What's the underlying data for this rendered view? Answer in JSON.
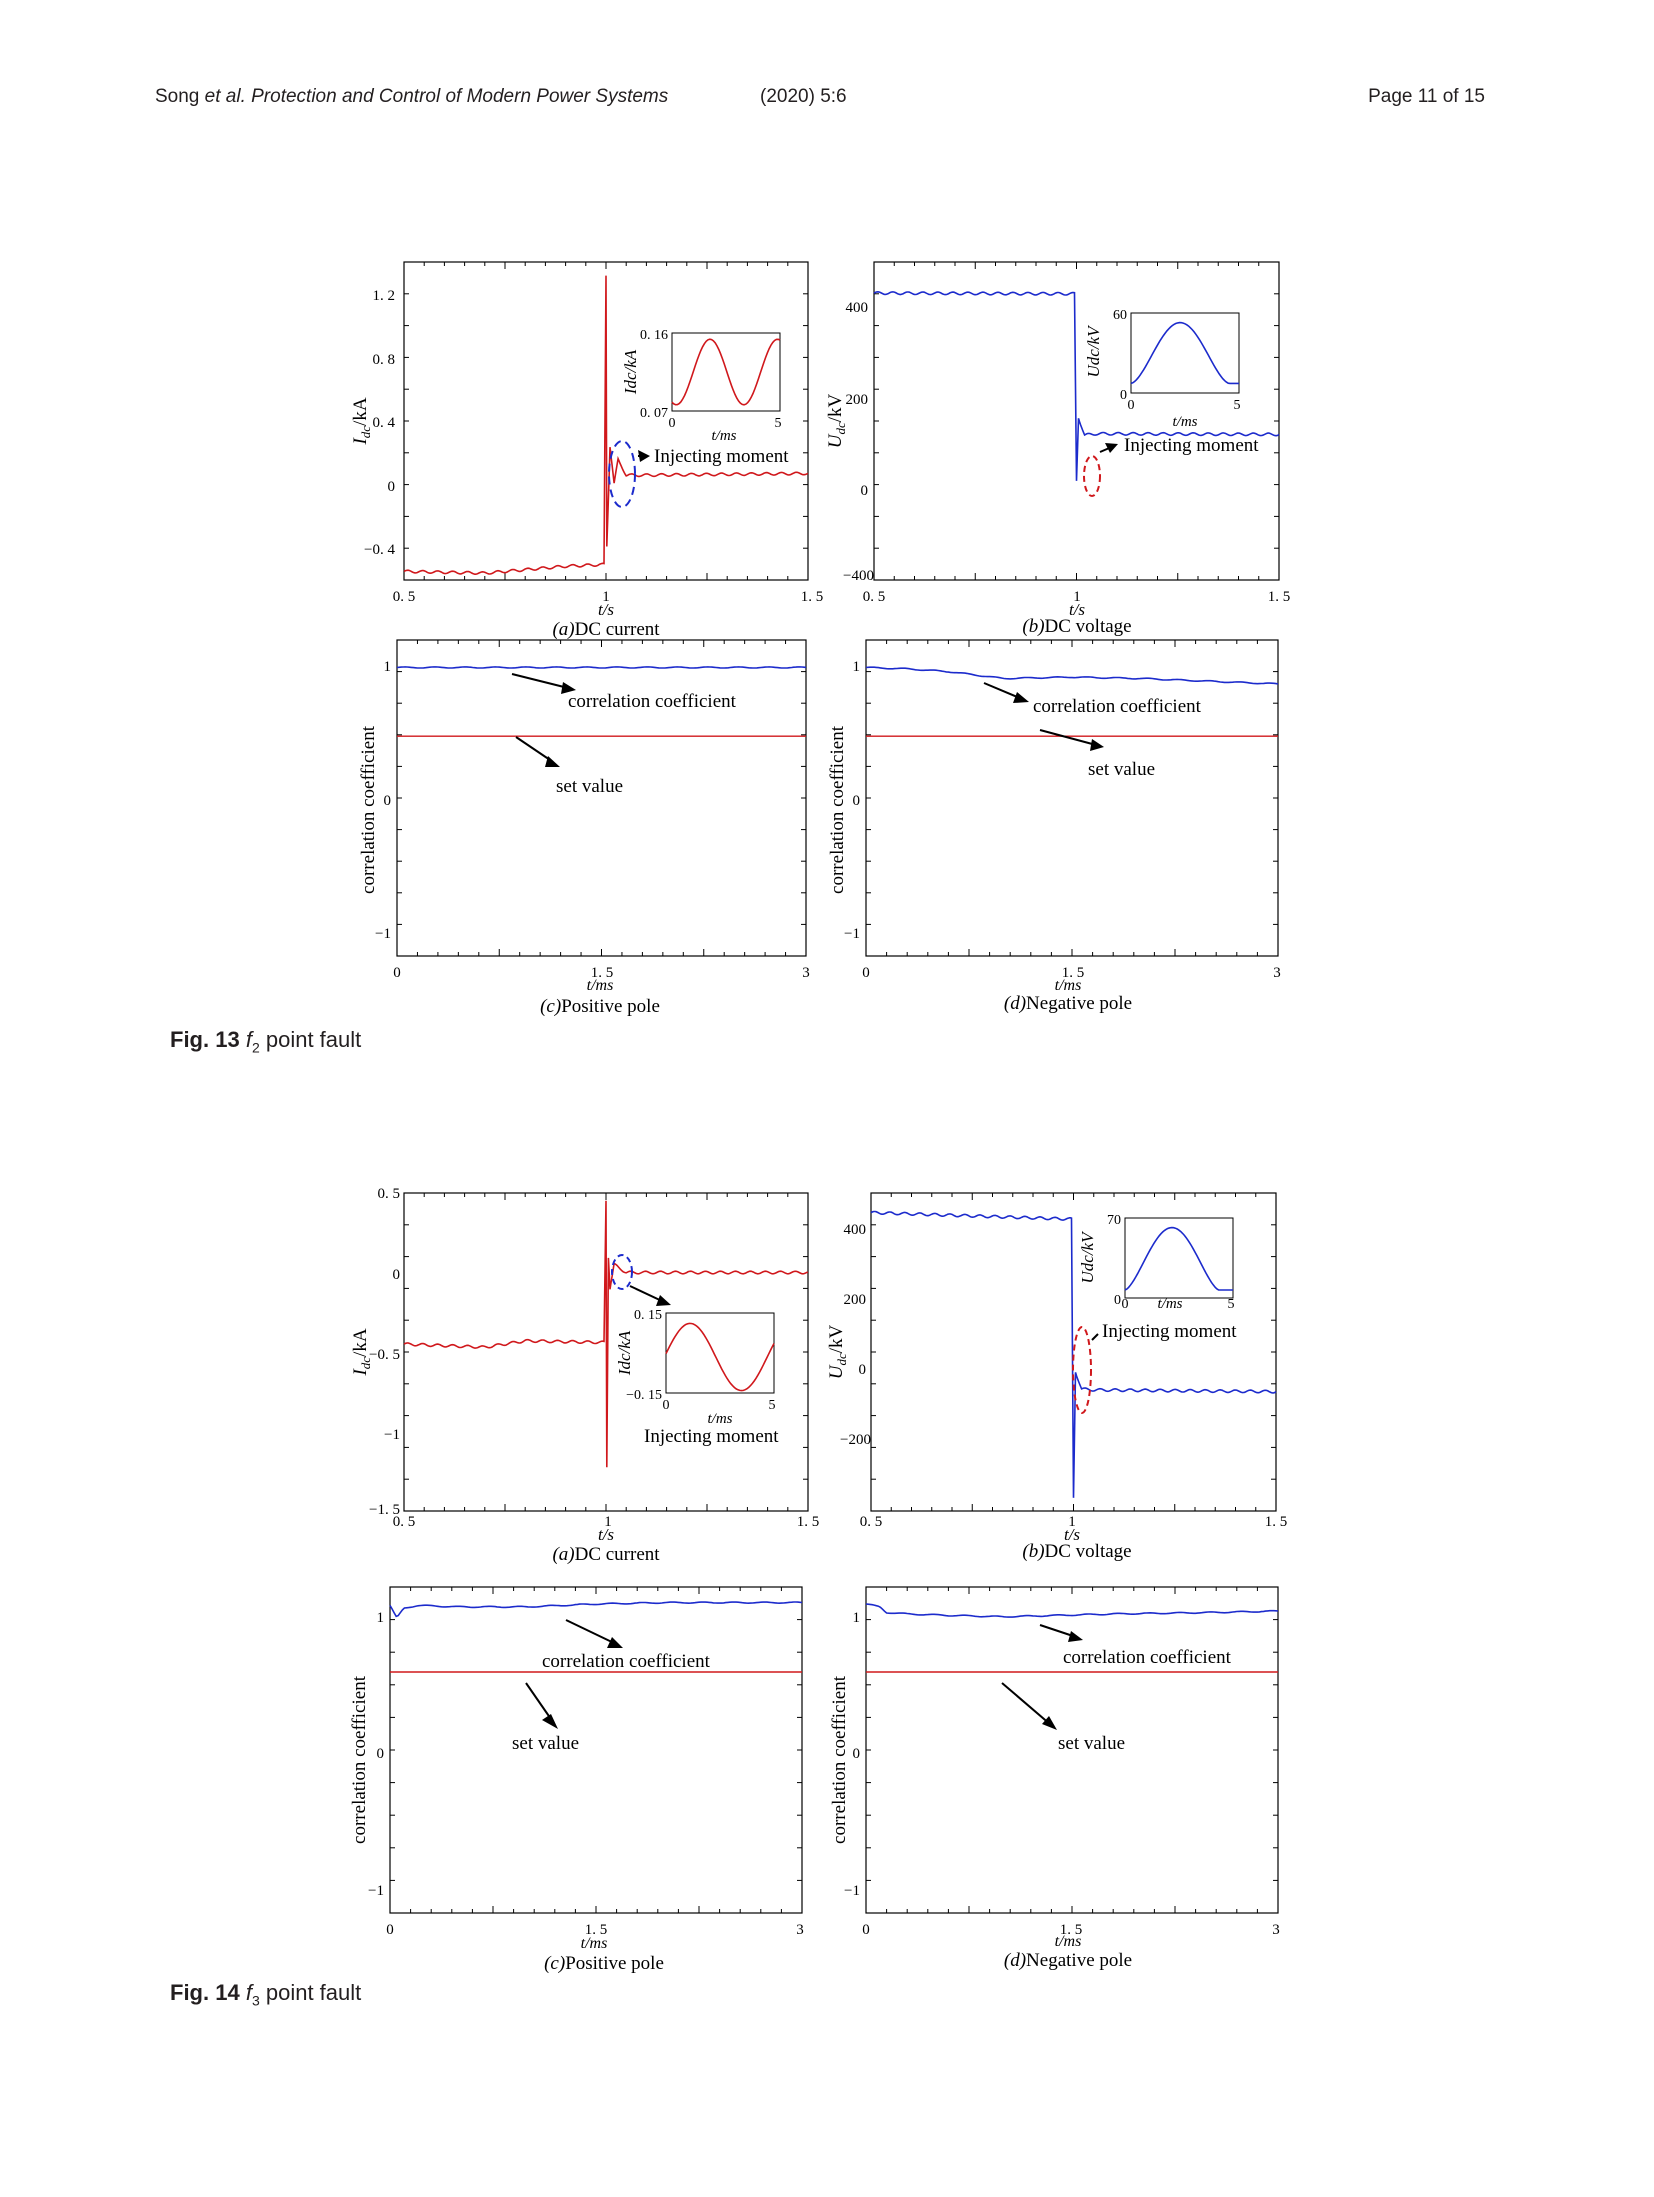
{
  "header": {
    "authors": "Song",
    "etal_journal": "et al. Protection and Control of Modern Power Systems",
    "issue": "(2020) 5:6",
    "page": "Page 11 of 15"
  },
  "figures": [
    {
      "caption_label": "Fig. 13",
      "caption_var": "f",
      "caption_sub": "2",
      "caption_text": " point fault",
      "panels": {
        "a": {
          "caption_letter": "(a)",
          "caption_text": "DC current",
          "ylabel_main": "I",
          "ylabel_sub": "dc",
          "ylabel_unit": "/kA",
          "xlabel": "t/s",
          "yticks": [
            "1. 2",
            "0. 8",
            "0. 4",
            "0",
            "−0. 4"
          ],
          "xticks": [
            "0. 5",
            "1",
            "1. 5"
          ],
          "inset": {
            "ylabel": "Idc/kA",
            "yticks": [
              "0. 16",
              "0. 07"
            ],
            "xticks": [
              "0",
              "5"
            ],
            "xlabel": "t/ms"
          },
          "annotation": "Injecting moment"
        },
        "b": {
          "caption_letter": "(b)",
          "caption_text": "DC voltage",
          "ylabel_main": "U",
          "ylabel_sub": "dc",
          "ylabel_unit": "/kV",
          "xlabel": "t/s",
          "yticks": [
            "400",
            "200",
            "0",
            "−400"
          ],
          "xticks": [
            "0. 5",
            "1",
            "1. 5"
          ],
          "inset": {
            "ylabel": "Udc/kV",
            "yticks": [
              "60",
              "0"
            ],
            "xticks": [
              "0",
              "5"
            ],
            "xlabel": "t/ms"
          },
          "annotation": "Injecting moment"
        },
        "c": {
          "caption_letter": "(c)",
          "caption_text": "Positive pole",
          "ylabel": "correlation coefficient",
          "xlabel": "t/ms",
          "yticks": [
            "1",
            "0",
            "−1"
          ],
          "xticks": [
            "0",
            "1. 5",
            "3"
          ],
          "annot_cc": "correlation coefficient",
          "annot_set": "set value"
        },
        "d": {
          "caption_letter": "(d)",
          "caption_text": "Negative pole",
          "ylabel": "correlation coefficient",
          "xlabel": "t/ms",
          "yticks": [
            "1",
            "0",
            "−1"
          ],
          "xticks": [
            "0",
            "1. 5",
            "3"
          ],
          "annot_cc": "correlation coefficient",
          "annot_set": "set value"
        }
      }
    },
    {
      "caption_label": "Fig. 14",
      "caption_var": "f",
      "caption_sub": "3",
      "caption_text": " point fault",
      "panels": {
        "a": {
          "caption_letter": "(a)",
          "caption_text": "DC current",
          "ylabel_main": "I",
          "ylabel_sub": "dc",
          "ylabel_unit": "/kA",
          "xlabel": "t/s",
          "yticks": [
            "0. 5",
            "0",
            "−0. 5",
            "−1",
            "−1. 5"
          ],
          "xticks": [
            "0. 5",
            "1",
            "1. 5"
          ],
          "inset": {
            "ylabel": "Idc/kA",
            "yticks": [
              "0. 15",
              "−0. 15"
            ],
            "xticks": [
              "0",
              "5"
            ],
            "xlabel": "t/ms"
          },
          "annotation": "Injecting moment"
        },
        "b": {
          "caption_letter": "(b)",
          "caption_text": "DC voltage",
          "ylabel_main": "U",
          "ylabel_sub": "dc",
          "ylabel_unit": "/kV",
          "xlabel": "t/s",
          "yticks": [
            "400",
            "200",
            "0",
            "−200"
          ],
          "xticks": [
            "0. 5",
            "1",
            "1. 5"
          ],
          "inset": {
            "ylabel": "Udc/kV",
            "yticks": [
              "70",
              "0"
            ],
            "xticks": [
              "0",
              "5"
            ],
            "xlabel": "t/ms"
          },
          "annotation": "Injecting moment"
        },
        "c": {
          "caption_letter": "(c)",
          "caption_text": "Positive pole",
          "ylabel": "correlation coefficient",
          "xlabel": "t/ms",
          "yticks": [
            "1",
            "0",
            "−1"
          ],
          "xticks": [
            "0",
            "1. 5",
            "3"
          ],
          "annot_cc": "correlation coefficient",
          "annot_set": "set value"
        },
        "d": {
          "caption_letter": "(d)",
          "caption_text": "Negative pole",
          "ylabel": "correlation coefficient",
          "xlabel": "t/ms",
          "yticks": [
            "1",
            "0",
            "−1"
          ],
          "xticks": [
            "0",
            "1. 5",
            "3"
          ],
          "annot_cc": "correlation coefficient",
          "annot_set": "set value"
        }
      }
    }
  ],
  "chart_data": [
    {
      "figure": "Fig. 13",
      "panel": "a",
      "type": "line",
      "color": "#d0181c",
      "xlim": [
        0.5,
        1.5
      ],
      "ylim": [
        -0.5,
        1.35
      ],
      "series": [
        {
          "x": [
            0.5,
            0.7,
            0.8,
            0.9,
            0.995,
            1.0,
            1.002,
            1.01,
            1.02,
            1.03,
            1.05,
            1.1,
            1.5
          ],
          "values": [
            -0.45,
            -0.46,
            -0.44,
            -0.42,
            -0.41,
            1.27,
            -0.3,
            0.28,
            0.06,
            0.2,
            0.11,
            0.11,
            0.12
          ]
        }
      ],
      "inset": {
        "xlim": [
          0,
          5
        ],
        "ylim": [
          0.07,
          0.16
        ]
      }
    },
    {
      "figure": "Fig. 13",
      "panel": "b",
      "type": "line",
      "color": "#1c2bcc",
      "xlim": [
        0.5,
        1.5
      ],
      "ylim": [
        -400,
        500
      ],
      "series": [
        {
          "x": [
            0.5,
            0.995,
            1.0,
            1.005,
            1.02,
            1.05,
            1.5
          ],
          "values": [
            412,
            410,
            -120,
            60,
            10,
            14,
            12
          ]
        }
      ],
      "inset": {
        "xlim": [
          0,
          5
        ],
        "ylim": [
          0,
          60
        ]
      }
    },
    {
      "figure": "Fig. 13",
      "panel": "c",
      "type": "line",
      "xlim": [
        0,
        3
      ],
      "ylim": [
        -1.1,
        1.2
      ],
      "series": [
        {
          "values_x": [
            0,
            3
          ],
          "values": [
            1,
            1
          ]
        },
        {
          "values_x": [
            0,
            3
          ],
          "values": [
            0.5,
            0.5
          ]
        }
      ]
    },
    {
      "figure": "Fig. 13",
      "panel": "d",
      "type": "line",
      "xlim": [
        0,
        3
      ],
      "ylim": [
        -1.1,
        1.2
      ],
      "series": [
        {
          "values_x": [
            0,
            0.3,
            0.6,
            1.0,
            1.5,
            2.0,
            2.5,
            3.0
          ],
          "values": [
            1,
            0.99,
            0.97,
            0.92,
            0.93,
            0.92,
            0.9,
            0.88
          ]
        },
        {
          "values_x": [
            0,
            3
          ],
          "values": [
            0.5,
            0.5
          ]
        }
      ]
    },
    {
      "figure": "Fig. 14",
      "panel": "a",
      "type": "line",
      "color": "#d0181c",
      "xlim": [
        0.5,
        1.5
      ],
      "ylim": [
        -1.5,
        0.5
      ],
      "series": [
        {
          "x": [
            0.5,
            0.7,
            0.8,
            0.995,
            1.0,
            1.002,
            1.006,
            1.01,
            1.02,
            1.05,
            1.1,
            1.5
          ],
          "values": [
            -0.45,
            -0.47,
            -0.43,
            -0.44,
            0.45,
            -1.22,
            0.1,
            -0.1,
            0.05,
            0.0,
            0.0,
            0.0
          ]
        }
      ],
      "inset": {
        "xlim": [
          0,
          5
        ],
        "ylim": [
          -0.15,
          0.15
        ]
      }
    },
    {
      "figure": "Fig. 14",
      "panel": "b",
      "type": "line",
      "color": "#1c2bcc",
      "xlim": [
        0.5,
        1.5
      ],
      "ylim": [
        -260,
        470
      ],
      "series": [
        {
          "x": [
            0.5,
            0.995,
            1.0,
            1.005,
            1.02,
            1.05,
            1.5
          ],
          "values": [
            425,
            410,
            -230,
            60,
            20,
            18,
            14
          ]
        }
      ],
      "inset": {
        "xlim": [
          0,
          5
        ],
        "ylim": [
          0,
          70
        ]
      }
    },
    {
      "figure": "Fig. 14",
      "panel": "c",
      "type": "line",
      "xlim": [
        0,
        3
      ],
      "ylim": [
        -1.2,
        1.1
      ],
      "series": [
        {
          "values_x": [
            0,
            0.05,
            0.1,
            0.2,
            0.5,
            1.0,
            1.5,
            2.0,
            2.5,
            3.0
          ],
          "values": [
            0.97,
            0.88,
            0.95,
            0.97,
            0.96,
            0.96,
            0.98,
            0.99,
            0.99,
            0.99
          ]
        },
        {
          "values_x": [
            0,
            3
          ],
          "values": [
            0.5,
            0.5
          ]
        }
      ]
    },
    {
      "figure": "Fig. 14",
      "panel": "d",
      "type": "line",
      "xlim": [
        0,
        3
      ],
      "ylim": [
        -1.2,
        1.1
      ],
      "series": [
        {
          "values_x": [
            0,
            0.1,
            0.15,
            0.3,
            0.6,
            1.0,
            1.4,
            1.8,
            2.5,
            3.0
          ],
          "values": [
            0.98,
            0.96,
            0.92,
            0.91,
            0.9,
            0.89,
            0.9,
            0.91,
            0.92,
            0.93
          ]
        },
        {
          "values_x": [
            0,
            3
          ],
          "values": [
            0.5,
            0.5
          ]
        }
      ]
    }
  ]
}
